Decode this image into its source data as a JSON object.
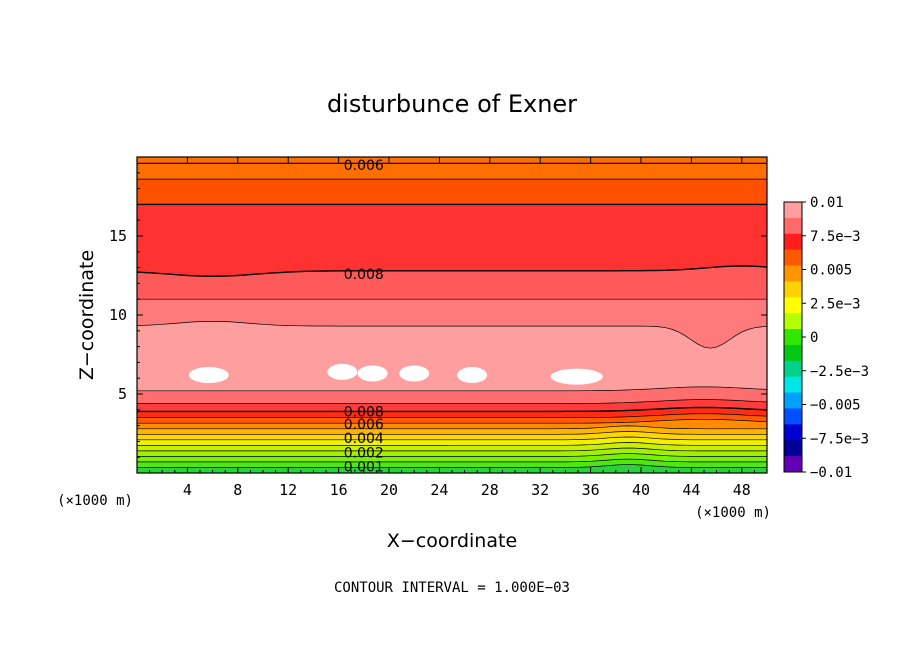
{
  "chart_data": {
    "type": "contour",
    "title": "disturbunce of Exner",
    "xlabel": "X−coordinate",
    "ylabel": "Z−coordinate",
    "x_unit": "(×1000 m)",
    "z_unit": "(×1000 m)",
    "xlim": [
      0,
      50
    ],
    "ylim": [
      0,
      20
    ],
    "x_ticks": [
      4,
      8,
      12,
      16,
      20,
      24,
      28,
      32,
      36,
      40,
      44,
      48
    ],
    "y_ticks": [
      5,
      10,
      15
    ],
    "footer": "CONTOUR INTERVAL = 1.000E−03",
    "contour_labels": [
      {
        "text": "0.006",
        "x": 18,
        "z": 19.5
      },
      {
        "text": "0.008",
        "x": 18,
        "z": 12.6
      },
      {
        "text": "0.008",
        "x": 18,
        "z": 3.9
      },
      {
        "text": "0.006",
        "x": 18,
        "z": 3.1
      },
      {
        "text": "0.004",
        "x": 18,
        "z": 2.2
      },
      {
        "text": "0.002",
        "x": 18,
        "z": 1.3
      },
      {
        "text": "0.001",
        "x": 18,
        "z": 0.4
      }
    ],
    "colorbar": {
      "labels": [
        "0.01",
        "7.5e−3",
        "0.005",
        "2.5e−3",
        "0",
        "−2.5e−3",
        "−0.005",
        "−7.5e−3",
        "−0.01"
      ],
      "colors": [
        "#ff9e9e",
        "#ff6a6a",
        "#ff1e1e",
        "#ff5a00",
        "#ff9600",
        "#ffd200",
        "#ffff00",
        "#b4ff00",
        "#32e600",
        "#00c814",
        "#00d28c",
        "#00e6e6",
        "#00a0ff",
        "#0050ff",
        "#0000d2",
        "#000096",
        "#6400b4"
      ]
    },
    "bands": [
      {
        "z_top": 0.35,
        "color": "#2ad23a"
      },
      {
        "z_top": 0.7,
        "color": "#50e614"
      },
      {
        "z_top": 1.05,
        "color": "#78f000"
      },
      {
        "z_top": 1.4,
        "color": "#a0f000"
      },
      {
        "z_top": 1.75,
        "color": "#c8f000"
      },
      {
        "z_top": 2.1,
        "color": "#f0f000"
      },
      {
        "z_top": 2.45,
        "color": "#ffd700"
      },
      {
        "z_top": 2.8,
        "color": "#ffb400"
      },
      {
        "z_top": 3.15,
        "color": "#ff8c00"
      },
      {
        "z_top": 3.5,
        "color": "#ff5a00"
      },
      {
        "z_top": 3.9,
        "color": "#ff2d14"
      },
      {
        "z_top": 4.4,
        "color": "#ff3c3c"
      },
      {
        "z_top": 5.2,
        "color": "#ff6e6e"
      },
      {
        "z_top": 9.3,
        "color": "#ff9e9e"
      },
      {
        "z_top": 11.0,
        "color": "#ff7a7a"
      },
      {
        "z_top": 12.8,
        "color": "#ff5a5a"
      },
      {
        "z_top": 17.0,
        "color": "#ff3232"
      },
      {
        "z_top": 18.6,
        "color": "#ff5000"
      },
      {
        "z_top": 20.0,
        "color": "#ff6e00"
      }
    ],
    "white_patches": [
      {
        "x": 5.7,
        "z": 6.2
      },
      {
        "x": 16.3,
        "z": 6.4
      },
      {
        "x": 18.7,
        "z": 6.3
      },
      {
        "x": 22.0,
        "z": 6.3
      },
      {
        "x": 26.6,
        "z": 6.2
      },
      {
        "x": 34.9,
        "z": 6.1
      }
    ]
  }
}
